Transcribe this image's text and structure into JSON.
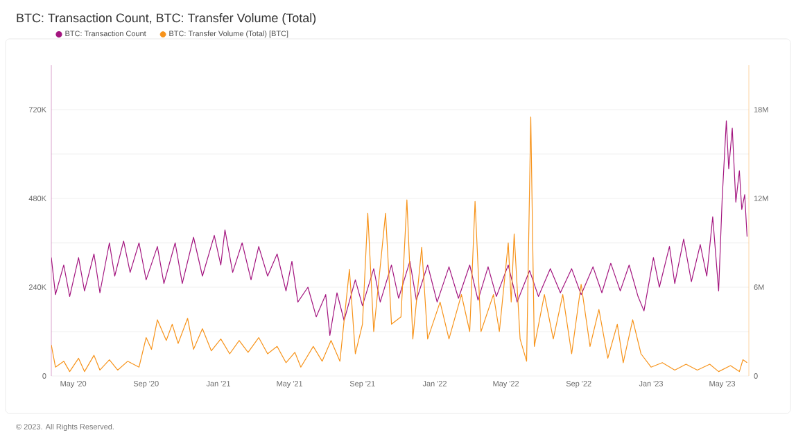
{
  "chart_data": {
    "type": "line",
    "title": "BTC: Transaction Count, BTC: Transfer Volume (Total)",
    "annotations": [
      "© 2023. All Rights Reserved."
    ],
    "legend": "top left",
    "grid": "y",
    "marker": "none",
    "line_style": "solid",
    "xlim": [
      "2020-03-25",
      "2023-06-15"
    ],
    "xticks": [
      {
        "value": "2020-05-01",
        "label": "May '20"
      },
      {
        "value": "2020-09-01",
        "label": "Sep '20"
      },
      {
        "value": "2021-01-01",
        "label": "Jan '21"
      },
      {
        "value": "2021-05-01",
        "label": "May '21"
      },
      {
        "value": "2021-09-01",
        "label": "Sep '21"
      },
      {
        "value": "2022-01-01",
        "label": "Jan '22"
      },
      {
        "value": "2022-05-01",
        "label": "May '22"
      },
      {
        "value": "2022-09-01",
        "label": "Sep '22"
      },
      {
        "value": "2023-01-01",
        "label": "Jan '23"
      },
      {
        "value": "2023-05-01",
        "label": "May '23"
      }
    ],
    "ylim": [
      0,
      840000
    ],
    "yticks": [
      0,
      {
        "value": 120000,
        "label": null
      },
      {
        "value": 240000,
        "label": "240K"
      },
      {
        "value": 360000,
        "label": null
      },
      {
        "value": 480000,
        "label": "480K"
      },
      {
        "value": 600000,
        "label": null
      },
      {
        "value": 720000,
        "label": "720K"
      }
    ],
    "y2lim": [
      0,
      21000000
    ],
    "y2ticks": [
      0,
      {
        "value": 6000000,
        "label": "6M"
      },
      {
        "value": 12000000,
        "label": "12M"
      },
      {
        "value": 18000000,
        "label": "18M"
      }
    ],
    "series": [
      {
        "name": "BTC: Transaction Count",
        "color": "#a3157f",
        "x": [
          "2020-03-25",
          "2020-04-01",
          "2020-04-15",
          "2020-04-25",
          "2020-05-10",
          "2020-05-20",
          "2020-06-05",
          "2020-06-15",
          "2020-07-01",
          "2020-07-10",
          "2020-07-25",
          "2020-08-05",
          "2020-08-20",
          "2020-09-01",
          "2020-09-20",
          "2020-10-01",
          "2020-10-20",
          "2020-11-01",
          "2020-11-20",
          "2020-12-05",
          "2020-12-25",
          "2021-01-05",
          "2021-01-12",
          "2021-01-25",
          "2021-02-10",
          "2021-02-25",
          "2021-03-10",
          "2021-03-25",
          "2021-04-10",
          "2021-04-25",
          "2021-05-05",
          "2021-05-15",
          "2021-06-01",
          "2021-06-15",
          "2021-07-01",
          "2021-07-08",
          "2021-07-20",
          "2021-08-01",
          "2021-08-20",
          "2021-09-01",
          "2021-09-20",
          "2021-10-01",
          "2021-10-20",
          "2021-11-01",
          "2021-11-20",
          "2021-12-01",
          "2021-12-20",
          "2022-01-05",
          "2022-01-25",
          "2022-02-10",
          "2022-03-01",
          "2022-03-15",
          "2022-04-01",
          "2022-04-15",
          "2022-05-05",
          "2022-05-20",
          "2022-06-10",
          "2022-06-25",
          "2022-07-15",
          "2022-08-01",
          "2022-08-20",
          "2022-09-05",
          "2022-09-25",
          "2022-10-10",
          "2022-10-25",
          "2022-11-10",
          "2022-11-25",
          "2022-12-10",
          "2022-12-20",
          "2023-01-05",
          "2023-01-15",
          "2023-02-01",
          "2023-02-10",
          "2023-02-25",
          "2023-03-10",
          "2023-03-25",
          "2023-04-05",
          "2023-04-15",
          "2023-04-25",
          "2023-05-01",
          "2023-05-08",
          "2023-05-12",
          "2023-05-18",
          "2023-05-24",
          "2023-05-30",
          "2023-06-03",
          "2023-06-08",
          "2023-06-12"
        ],
        "values": [
          320000,
          220000,
          300000,
          215000,
          320000,
          230000,
          330000,
          225000,
          360000,
          270000,
          365000,
          280000,
          360000,
          260000,
          350000,
          250000,
          360000,
          250000,
          375000,
          270000,
          380000,
          300000,
          395000,
          280000,
          360000,
          260000,
          350000,
          270000,
          330000,
          230000,
          310000,
          200000,
          240000,
          160000,
          220000,
          110000,
          225000,
          150000,
          260000,
          190000,
          290000,
          200000,
          300000,
          210000,
          310000,
          205000,
          300000,
          200000,
          295000,
          210000,
          300000,
          205000,
          295000,
          215000,
          300000,
          200000,
          285000,
          215000,
          290000,
          225000,
          290000,
          220000,
          295000,
          225000,
          305000,
          230000,
          300000,
          215000,
          176000,
          320000,
          240000,
          350000,
          250000,
          370000,
          255000,
          355000,
          270000,
          430000,
          230000,
          480000,
          690000,
          560000,
          670000,
          470000,
          555000,
          450000,
          490000,
          377000
        ]
      },
      {
        "name": "BTC: Transfer Volume (Total) [BTC]",
        "color": "#f7931a",
        "axis": "y2",
        "x": [
          "2020-03-25",
          "2020-04-01",
          "2020-04-15",
          "2020-04-25",
          "2020-05-10",
          "2020-05-20",
          "2020-06-05",
          "2020-06-15",
          "2020-07-01",
          "2020-07-15",
          "2020-08-01",
          "2020-08-20",
          "2020-09-01",
          "2020-09-10",
          "2020-09-20",
          "2020-10-05",
          "2020-10-15",
          "2020-10-25",
          "2020-11-10",
          "2020-11-20",
          "2020-12-05",
          "2020-12-20",
          "2021-01-05",
          "2021-01-20",
          "2021-02-05",
          "2021-02-20",
          "2021-03-10",
          "2021-03-25",
          "2021-04-10",
          "2021-04-25",
          "2021-05-10",
          "2021-05-20",
          "2021-06-10",
          "2021-06-25",
          "2021-07-10",
          "2021-07-25",
          "2021-08-10",
          "2021-08-20",
          "2021-09-01",
          "2021-09-10",
          "2021-09-20",
          "2021-10-10",
          "2021-10-20",
          "2021-11-05",
          "2021-11-15",
          "2021-11-25",
          "2021-12-10",
          "2021-12-20",
          "2022-01-10",
          "2022-01-25",
          "2022-02-15",
          "2022-03-01",
          "2022-03-10",
          "2022-03-20",
          "2022-04-10",
          "2022-04-20",
          "2022-05-05",
          "2022-05-10",
          "2022-05-15",
          "2022-05-25",
          "2022-06-05",
          "2022-06-12",
          "2022-06-18",
          "2022-07-05",
          "2022-07-20",
          "2022-08-05",
          "2022-08-20",
          "2022-09-05",
          "2022-09-20",
          "2022-10-05",
          "2022-10-20",
          "2022-11-05",
          "2022-11-15",
          "2022-12-01",
          "2022-12-15",
          "2023-01-01",
          "2023-01-20",
          "2023-02-10",
          "2023-03-01",
          "2023-03-20",
          "2023-04-10",
          "2023-04-25",
          "2023-05-15",
          "2023-05-30",
          "2023-06-05",
          "2023-06-12"
        ],
        "values": [
          2100000,
          600000,
          1000000,
          300000,
          1200000,
          300000,
          1400000,
          400000,
          1100000,
          400000,
          1000000,
          600000,
          2600000,
          1800000,
          3800000,
          2400000,
          3500000,
          2200000,
          3900000,
          1800000,
          3200000,
          1700000,
          2500000,
          1500000,
          2400000,
          1600000,
          2600000,
          1500000,
          2000000,
          900000,
          1600000,
          600000,
          2000000,
          1000000,
          2400000,
          1000000,
          7200000,
          1500000,
          3500000,
          11000000,
          3000000,
          11000000,
          3500000,
          4000000,
          11900000,
          2500000,
          8700000,
          2500000,
          5000000,
          2500000,
          5500000,
          3000000,
          11800000,
          3000000,
          5500000,
          3000000,
          9000000,
          5000000,
          9600000,
          2500000,
          1000000,
          17500000,
          2000000,
          5500000,
          2500000,
          5500000,
          1500000,
          6200000,
          2000000,
          4500000,
          1200000,
          3500000,
          900000,
          3800000,
          1500000,
          600000,
          900000,
          400000,
          800000,
          400000,
          800000,
          300000,
          700000,
          300000,
          1100000,
          900000
        ]
      }
    ]
  }
}
